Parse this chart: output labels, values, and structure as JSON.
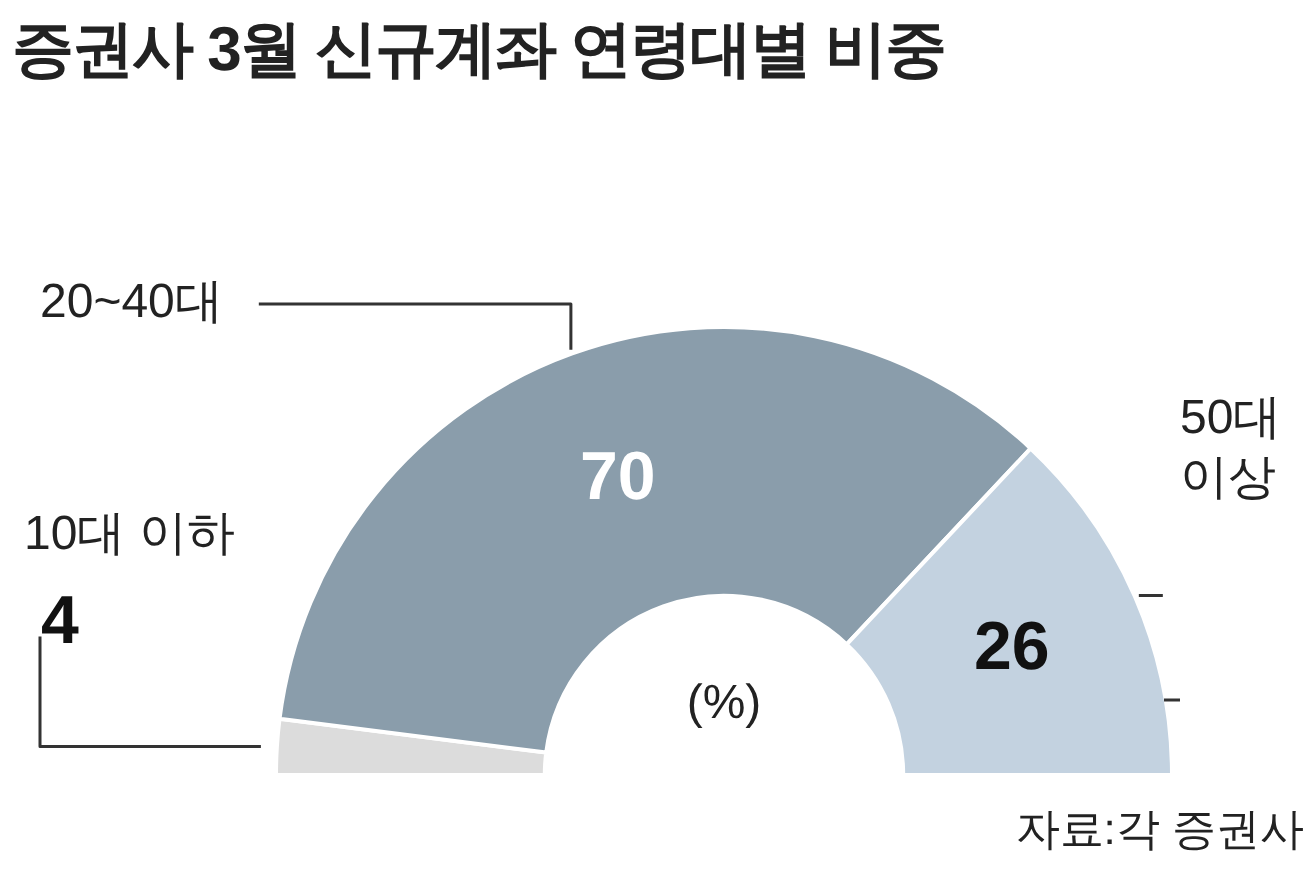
{
  "chart_data": {
    "type": "donut",
    "title": "증권사 3월 신규계좌 연령대별 비중",
    "categories": [
      "10대 이하",
      "20~40대",
      "50대 이상"
    ],
    "values": [
      4,
      70,
      26
    ],
    "colors": [
      "#dcdcdc",
      "#8a9dab",
      "#c3d2e0"
    ],
    "data_labels": true,
    "legend": false,
    "annotations": [
      "(%)",
      "자료:각 증권사"
    ]
  }
}
